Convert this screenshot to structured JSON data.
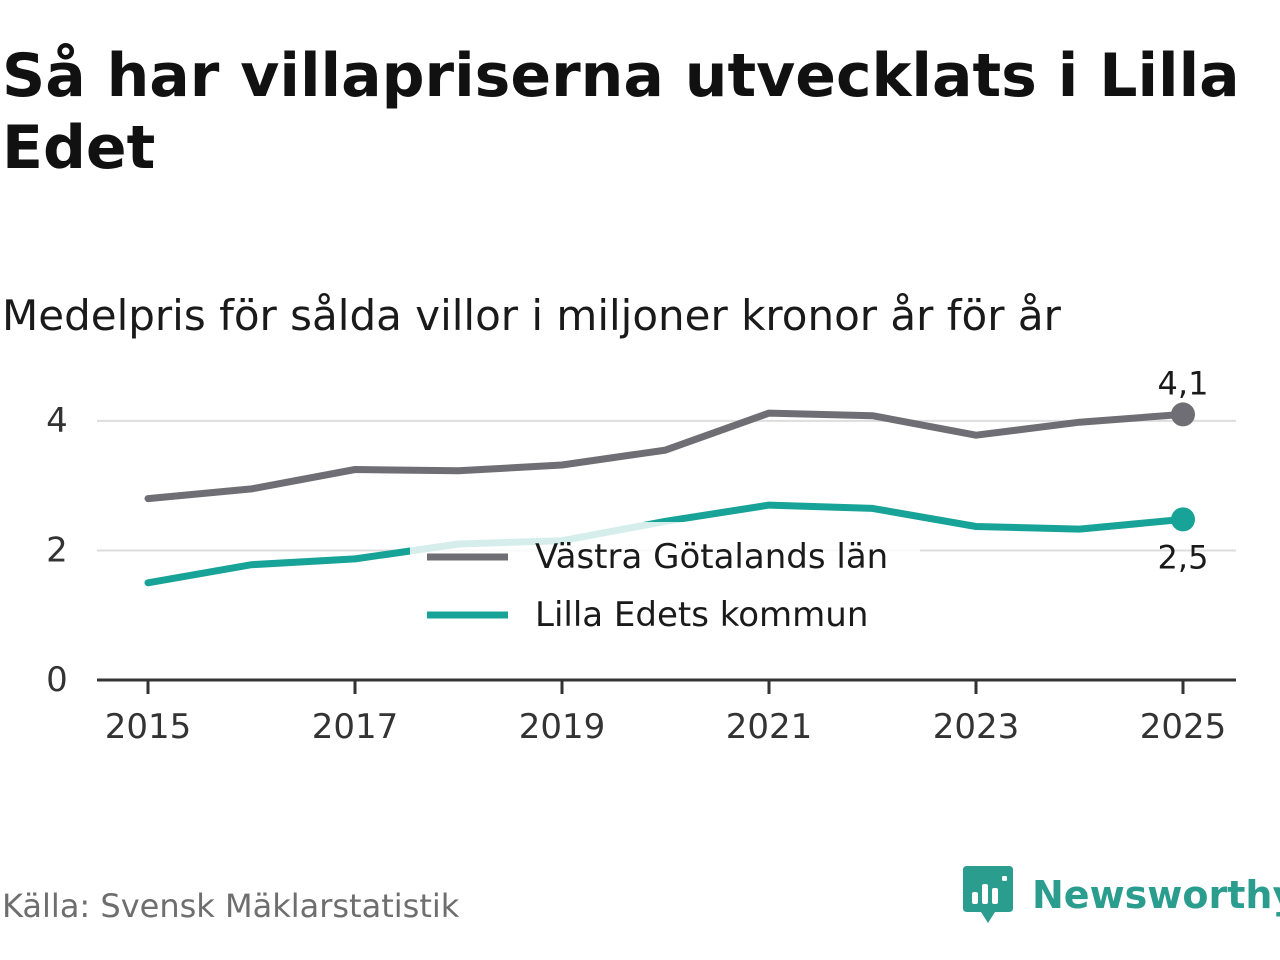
{
  "title": "Så har villapriserna utvecklats i Lilla Edet",
  "subtitle": "Medelpris för sålda villor i miljoner kronor år för år",
  "source": "Källa: Svensk Mäklarstatistik",
  "brand": "Newsworthy",
  "colors": {
    "region": "#6f6e74",
    "kommun": "#17a398",
    "grid": "#dddddd",
    "axis": "#333333",
    "brand": "#2a9d8f"
  },
  "chart_data": {
    "type": "line",
    "x": [
      2015,
      2016,
      2017,
      2018,
      2019,
      2020,
      2021,
      2022,
      2023,
      2024,
      2025
    ],
    "xticks": [
      2015,
      2017,
      2019,
      2021,
      2023,
      2025
    ],
    "xtick_labels": [
      "2015",
      "2017",
      "2019",
      "2021",
      "2023",
      "2025"
    ],
    "yticks": [
      0,
      2,
      4
    ],
    "ytick_labels": [
      "0",
      "2",
      "4"
    ],
    "ylim": [
      0,
      4.4
    ],
    "xlim": [
      2014.8,
      2025.5
    ],
    "grid": true,
    "legend_position": "center",
    "series": [
      {
        "key": "region",
        "name": "Västra Götalands län",
        "values": [
          2.8,
          2.95,
          3.25,
          3.23,
          3.32,
          3.55,
          4.12,
          4.08,
          3.78,
          3.98,
          4.1
        ],
        "end_label": "4,1"
      },
      {
        "key": "kommun",
        "name": "Lilla Edets kommun",
        "values": [
          1.5,
          1.78,
          1.87,
          2.1,
          2.15,
          2.45,
          2.7,
          2.65,
          2.37,
          2.33,
          2.48
        ],
        "end_label": "2,5"
      }
    ]
  }
}
